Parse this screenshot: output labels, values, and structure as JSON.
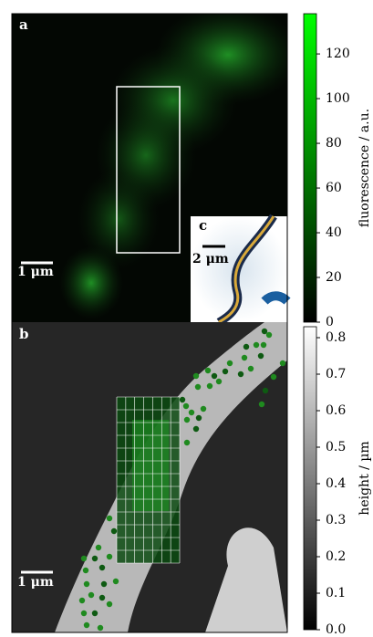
{
  "chart_data": [
    {
      "type": "image",
      "panel_label": "a",
      "scale_bar": "1 μm",
      "inset": {
        "panel_label": "c",
        "scale_bar": "2 μm"
      },
      "colorbar_label": "fluorescence / a.u.",
      "clim": [
        0,
        138
      ],
      "cticks": [
        0,
        20,
        40,
        60,
        80,
        100,
        120
      ],
      "colormap": [
        "#000000",
        "#00ff00"
      ]
    },
    {
      "type": "image",
      "panel_label": "b",
      "scale_bar": "1 μm",
      "colorbar_label": "height / µm",
      "clim": [
        0,
        0.83
      ],
      "cticks": [
        {
          "value": 0,
          "label": "0.0"
        },
        0.1,
        0.2,
        0.3,
        0.4,
        0.5,
        0.6,
        0.7,
        0.8
      ],
      "colormap": [
        "#000000",
        "#ffffff"
      ]
    }
  ]
}
